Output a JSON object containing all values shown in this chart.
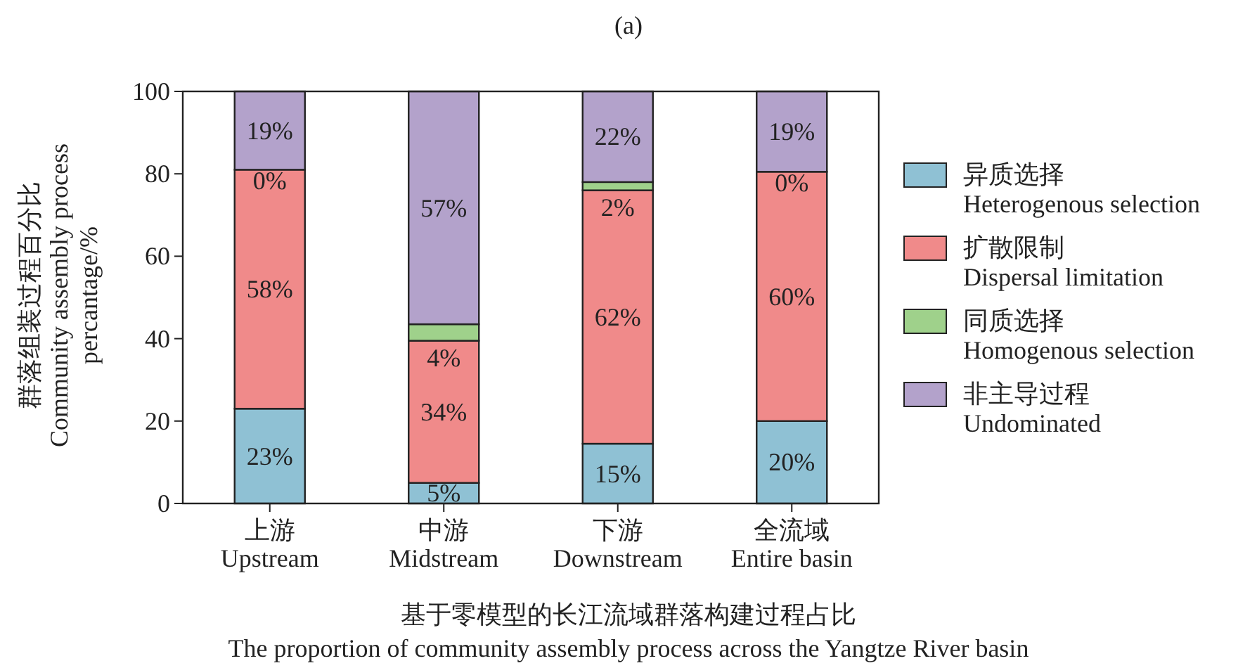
{
  "chart_data": {
    "type": "bar",
    "stacked": true,
    "title": "(a)",
    "ylabel": "群落组装过程百分比\nCommunity assembly process\npercantage/%",
    "xlabel": "基于零模型的长江流域群落构建过程占比\nThe proportion of community assembly process across the Yangtze River basin",
    "categories": [
      "上游\nUpstream",
      "中游\nMidstream",
      "下游\nDownstream",
      "全流域\nEntire basin"
    ],
    "series": [
      {
        "name": "异质选择\nHeterogenous selection",
        "color": "#8fc1d4",
        "values": [
          23,
          5,
          14.5,
          20
        ],
        "value_labels": [
          "23%",
          "5%",
          "15%",
          "20%"
        ]
      },
      {
        "name": "扩散限制\nDispersal limitation",
        "color": "#f08a8a",
        "values": [
          58,
          34.5,
          61.5,
          60.5
        ],
        "value_labels": [
          "58%",
          "34%",
          "62%",
          "60%"
        ]
      },
      {
        "name": "同质选择\nHomogenous selection",
        "color": "#9fd18b",
        "values": [
          0,
          4,
          2,
          0
        ],
        "value_labels": [
          "0%",
          "4%",
          "2%",
          "0%"
        ]
      },
      {
        "name": "非主导过程\nUndominated",
        "color": "#b3a2cb",
        "values": [
          19,
          56.5,
          22,
          19.5
        ],
        "value_labels": [
          "19%",
          "57%",
          "22%",
          "19%"
        ]
      }
    ],
    "ylim": [
      0,
      100
    ],
    "yticks": [
      0,
      20,
      40,
      60,
      80,
      100
    ],
    "legend": "right"
  }
}
